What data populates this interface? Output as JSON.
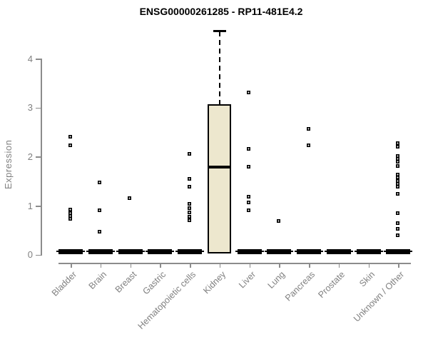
{
  "chart_data": {
    "type": "boxplot",
    "title": "ENSG00000261285 - RP11-481E4.2",
    "ylabel": "Expression",
    "xlabel": "",
    "ylim": [
      0,
      4.6
    ],
    "yticks": [
      0,
      1,
      2,
      3,
      4
    ],
    "grid": false,
    "legend": "none",
    "colors": {
      "box_fill": "#EDE7CE",
      "box_border": "#000000",
      "collapsed_bar": "#000000",
      "axis": "#8C8C8C",
      "label": "#808080",
      "title": "#000000"
    },
    "categories": [
      {
        "label": "Bladder",
        "collapsed": true,
        "outliers": [
          2.4,
          2.23,
          0.92,
          0.85,
          0.79,
          0.73
        ]
      },
      {
        "label": "Brain",
        "collapsed": true,
        "outliers": [
          1.47,
          0.91,
          0.47
        ]
      },
      {
        "label": "Breast",
        "collapsed": true,
        "outliers": [
          1.16
        ]
      },
      {
        "label": "Gastric",
        "collapsed": true,
        "outliers": []
      },
      {
        "label": "Hematopoietic cells",
        "collapsed": true,
        "outliers": [
          2.06,
          1.55,
          1.38,
          1.03,
          0.95,
          0.86,
          0.78,
          0.7
        ]
      },
      {
        "label": "Kidney",
        "collapsed": false,
        "box": {
          "whisker_low": 0.02,
          "q1": 0.02,
          "median": 1.78,
          "q3": 3.07,
          "whisker_high": 4.55
        },
        "outliers": []
      },
      {
        "label": "Liver",
        "collapsed": true,
        "outliers": [
          3.31,
          2.16,
          1.79,
          1.18,
          1.07,
          0.9
        ]
      },
      {
        "label": "Lung",
        "collapsed": true,
        "outliers": [
          0.69
        ]
      },
      {
        "label": "Pancreas",
        "collapsed": true,
        "outliers": [
          2.57,
          2.23
        ]
      },
      {
        "label": "Prostate",
        "collapsed": true,
        "outliers": []
      },
      {
        "label": "Skin",
        "collapsed": true,
        "outliers": []
      },
      {
        "label": "Unknown / Other",
        "collapsed": true,
        "outliers": [
          2.28,
          2.2,
          2.02,
          1.95,
          1.89,
          1.81,
          1.64,
          1.58,
          1.51,
          1.45,
          1.38,
          1.24,
          0.85,
          0.65,
          0.52,
          0.4
        ]
      }
    ]
  }
}
